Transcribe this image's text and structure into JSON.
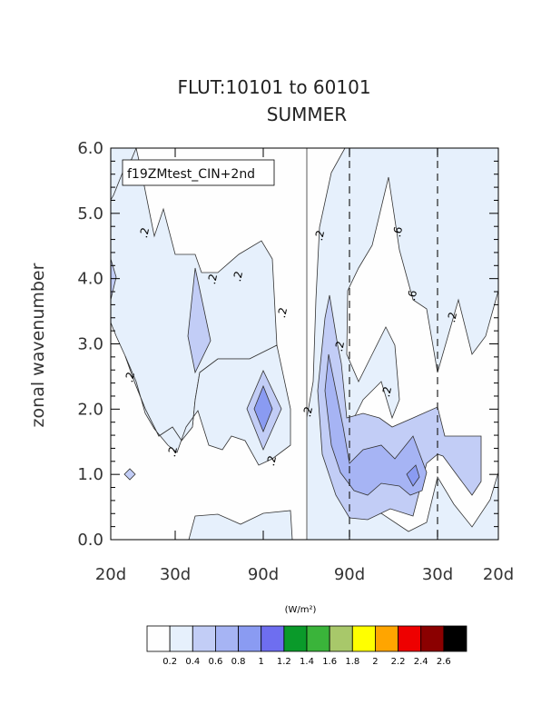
{
  "chart_data": {
    "type": "contour",
    "title": "FLUT:10101 to 60101",
    "subtitle": "SUMMER",
    "ylabel": "zonal wavenumber",
    "ylim": [
      0,
      6
    ],
    "yticks": [
      "0.0",
      "1.0",
      "2.0",
      "3.0",
      "4.0",
      "5.0",
      "6.0"
    ],
    "xticks": [
      "20d",
      "30d",
      "90d",
      "90d",
      "30d",
      "20d"
    ],
    "legend": "f19ZMtest_CIN+2nd",
    "units": "(W/m²)",
    "colorbar": {
      "levels": [
        "0.2",
        "0.4",
        "0.6",
        "0.8",
        "1",
        "1.2",
        "1.4",
        "1.6",
        "1.8",
        "2",
        "2.2",
        "2.4",
        "2.6"
      ],
      "colors": [
        "#fefefe",
        "#e6f0fc",
        "#c2cdf6",
        "#a6b4f4",
        "#8a9bf2",
        "#6e6ef0",
        "#0a9a2a",
        "#3ab43a",
        "#a8c86a",
        "#ffff00",
        "#ffa500",
        "#ee0000",
        "#8b0000",
        "#000000"
      ]
    },
    "contour_labels": [
      ".2",
      ".2",
      ".2",
      ".2",
      ".2",
      ".2",
      ".2",
      ".2",
      ".2",
      ".2",
      ".6",
      ".6",
      ".2",
      ".2"
    ],
    "regions": [
      {
        "level": 0.2,
        "color": "#e6f0fc"
      },
      {
        "level": 0.4,
        "color": "#c2cdf6"
      },
      {
        "level": 0.6,
        "color": "#a6b4f4"
      },
      {
        "level": 0.8,
        "color": "#8a9bf2"
      }
    ]
  }
}
